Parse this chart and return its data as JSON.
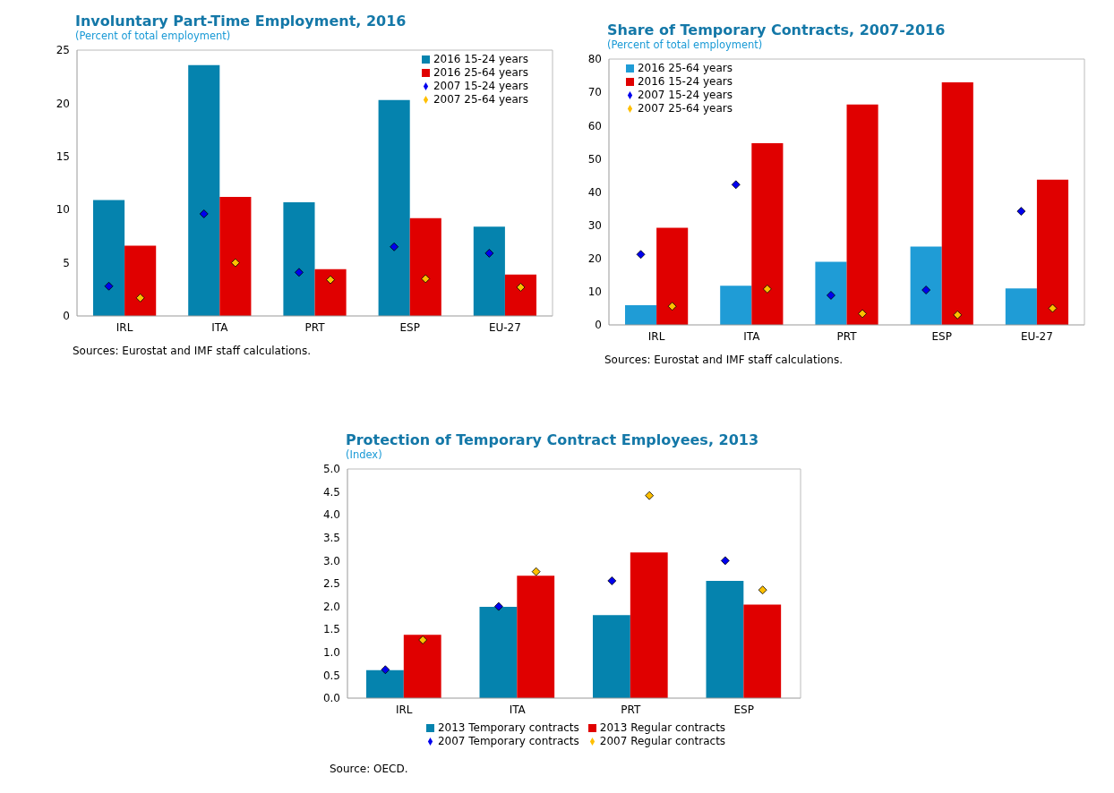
{
  "chart_data": [
    {
      "type": "bar",
      "title": "Involuntary Part-Time Employment, 2016",
      "subtitle": "(Percent of total employment)",
      "categories": [
        "IRL",
        "ITA",
        "PRT",
        "ESP",
        "EU-27"
      ],
      "series": [
        {
          "name": "2016 15-24 years",
          "color": "#0583ae",
          "values": [
            10.9,
            23.6,
            10.7,
            20.3,
            8.4
          ]
        },
        {
          "name": "2016 25-64 years",
          "color": "#e00000",
          "values": [
            6.6,
            11.2,
            4.4,
            9.2,
            3.9
          ]
        },
        {
          "name": "2007 15-24 years",
          "type": "scatter",
          "color": "#0000ee",
          "values": [
            2.8,
            9.6,
            4.1,
            6.5,
            5.9
          ]
        },
        {
          "name": "2007 25-64 years",
          "type": "scatter",
          "color": "#ffbf00",
          "values": [
            1.7,
            5.0,
            3.4,
            3.5,
            2.7
          ]
        }
      ],
      "ylim": [
        0,
        25
      ],
      "yticks": [
        0,
        5,
        10,
        15,
        20,
        25
      ],
      "marker": "diamond",
      "legend": "top right",
      "grid": false,
      "annotations": [
        "Sources: Eurostat and IMF staff calculations."
      ]
    },
    {
      "type": "bar",
      "title": "Share of Temporary Contracts, 2007-2016",
      "subtitle": "(Percent of total employment)",
      "categories": [
        "IRL",
        "ITA",
        "PRT",
        "ESP",
        "EU-27"
      ],
      "series": [
        {
          "name": "2016 25-64 years",
          "color": "#1f9cd6",
          "values": [
            5.9,
            11.8,
            19.0,
            23.6,
            11.0
          ]
        },
        {
          "name": "2016 15-24 years",
          "color": "#e00000",
          "values": [
            29.2,
            54.7,
            66.3,
            73.0,
            43.7
          ]
        },
        {
          "name": "2007 15-24 years",
          "type": "scatter",
          "color": "#0000ee",
          "values": [
            21.2,
            42.2,
            8.9,
            10.5,
            34.2
          ]
        },
        {
          "name": "2007 25-64 years",
          "type": "scatter",
          "color": "#ffbf00",
          "values": [
            5.6,
            10.8,
            3.4,
            3.0,
            5.0
          ]
        }
      ],
      "ylim": [
        0,
        80
      ],
      "yticks": [
        0,
        10,
        20,
        30,
        40,
        50,
        60,
        70,
        80
      ],
      "marker": "diamond",
      "legend": "top left",
      "grid": false,
      "annotations": [
        "Sources: Eurostat and IMF staff calculations."
      ]
    },
    {
      "type": "bar",
      "title": "Protection of Temporary Contract Employees, 2013",
      "subtitle": "(Index)",
      "categories": [
        "IRL",
        "ITA",
        "PRT",
        "ESP"
      ],
      "series": [
        {
          "name": "2013 Temporary contracts",
          "color": "#0583ae",
          "values": [
            0.61,
            1.99,
            1.81,
            2.56
          ]
        },
        {
          "name": "2013 Regular contracts",
          "color": "#e00000",
          "values": [
            1.38,
            2.67,
            3.18,
            2.04
          ]
        },
        {
          "name": "2007 Temporary contracts",
          "type": "scatter",
          "color": "#0000ee",
          "values": [
            0.62,
            2.0,
            2.56,
            3.0
          ]
        },
        {
          "name": "2007 Regular contracts",
          "type": "scatter",
          "color": "#ffbf00",
          "values": [
            1.27,
            2.76,
            4.42,
            2.36
          ]
        }
      ],
      "ylim": [
        0,
        5
      ],
      "yticks": [
        {
          "value": 0,
          "label": "0.0"
        },
        {
          "value": 0.5,
          "label": "0.5"
        },
        {
          "value": 1,
          "label": "1.0"
        },
        {
          "value": 1.5,
          "label": "1.5"
        },
        {
          "value": 2,
          "label": "2.0"
        },
        {
          "value": 2.5,
          "label": "2.5"
        },
        {
          "value": 3,
          "label": "3.0"
        },
        {
          "value": 3.5,
          "label": "3.5"
        },
        {
          "value": 4,
          "label": "4.0"
        },
        {
          "value": 4.5,
          "label": "4.5"
        },
        {
          "value": 5,
          "label": "5.0"
        }
      ],
      "marker": "diamond",
      "legend": "bottom",
      "grid": false,
      "annotations": [
        "Source: OECD."
      ]
    }
  ]
}
